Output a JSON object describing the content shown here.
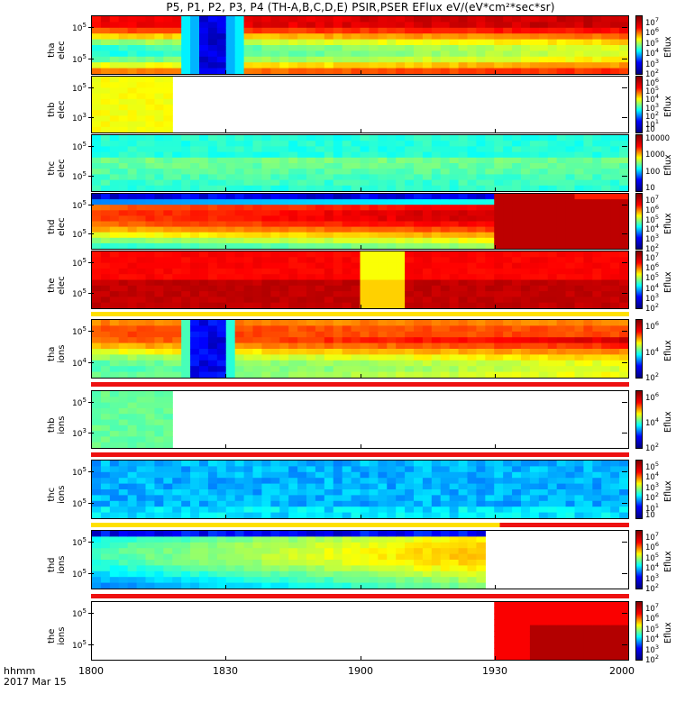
{
  "chart_data": {
    "type": "heatmap",
    "title": "P5, P1, P2, P3, P4 (TH-A,B,C,D,E) PSIR,PSER EFlux eV/(eV*cm²*sec*sr)",
    "x_ticks": [
      "1800",
      "1830",
      "1900",
      "1930",
      "2000"
    ],
    "x_foot": [
      "hhmm",
      "2017 Mar 15"
    ],
    "colorbar_label": "Eflux",
    "panels": [
      {
        "ylabel": [
          "tha",
          "elec"
        ],
        "yticks": [
          "10",
          "10"
        ],
        "ytick_exp": [
          "5",
          "5"
        ],
        "cbar_ticks": [
          "10",
          "10",
          "10",
          "10",
          "10",
          "10"
        ],
        "cbar_exp": [
          "7",
          "6",
          "5",
          "4",
          "3",
          "2"
        ]
      },
      {
        "ylabel": [
          "thb",
          "elec"
        ],
        "yticks": [
          "10",
          "10"
        ],
        "ytick_exp": [
          "5",
          "3"
        ],
        "cbar_ticks": [
          "10",
          "10",
          "10",
          "10",
          "10",
          "10",
          "10"
        ],
        "cbar_exp": [
          "6",
          "5",
          "4",
          "3",
          "2",
          "1",
          ""
        ]
      },
      {
        "ylabel": [
          "thc",
          "elec"
        ],
        "yticks": [
          "10",
          "10"
        ],
        "ytick_exp": [
          "5",
          "5"
        ],
        "cbar_ticks": [
          "10000",
          "1000",
          "100",
          "10"
        ],
        "cbar_exp": [
          "",
          "",
          "",
          ""
        ]
      },
      {
        "ylabel": [
          "thd",
          "elec"
        ],
        "yticks": [
          "10",
          "10"
        ],
        "ytick_exp": [
          "5",
          "5"
        ],
        "cbar_ticks": [
          "10",
          "10",
          "10",
          "10",
          "10",
          "10"
        ],
        "cbar_exp": [
          "7",
          "6",
          "5",
          "4",
          "3",
          "2"
        ]
      },
      {
        "ylabel": [
          "the",
          "elec"
        ],
        "yticks": [
          "10",
          "10"
        ],
        "ytick_exp": [
          "5",
          "5"
        ],
        "cbar_ticks": [
          "10",
          "10",
          "10",
          "10",
          "10",
          "10"
        ],
        "cbar_exp": [
          "7",
          "6",
          "5",
          "4",
          "3",
          "2"
        ]
      },
      {
        "ylabel": [
          "tha",
          "ions"
        ],
        "yticks": [
          "10",
          "10"
        ],
        "ytick_exp": [
          "5",
          "4"
        ],
        "cbar_ticks": [
          "10",
          "10",
          "10"
        ],
        "cbar_exp": [
          "6",
          "4",
          "2"
        ]
      },
      {
        "ylabel": [
          "thb",
          "ions"
        ],
        "yticks": [
          "10",
          "10"
        ],
        "ytick_exp": [
          "5",
          "3"
        ],
        "cbar_ticks": [
          "10",
          "10",
          "10"
        ],
        "cbar_exp": [
          "6",
          "4",
          "2"
        ]
      },
      {
        "ylabel": [
          "thc",
          "ions"
        ],
        "yticks": [
          "10",
          "10"
        ],
        "ytick_exp": [
          "5",
          "5"
        ],
        "cbar_ticks": [
          "10",
          "10",
          "10",
          "10",
          "10",
          "10"
        ],
        "cbar_exp": [
          "5",
          "4",
          "3",
          "2",
          "1",
          ""
        ]
      },
      {
        "ylabel": [
          "thd",
          "ions"
        ],
        "yticks": [
          "10",
          "10"
        ],
        "ytick_exp": [
          "5",
          "5"
        ],
        "cbar_ticks": [
          "10",
          "10",
          "10",
          "10",
          "10",
          "10"
        ],
        "cbar_exp": [
          "7",
          "6",
          "5",
          "4",
          "3",
          "2"
        ]
      },
      {
        "ylabel": [
          "the",
          "ions"
        ],
        "yticks": [
          "10",
          "10"
        ],
        "ytick_exp": [
          "5",
          "5"
        ],
        "cbar_ticks": [
          "10",
          "10",
          "10",
          "10",
          "10",
          "10"
        ],
        "cbar_exp": [
          "7",
          "6",
          "5",
          "4",
          "3",
          "2"
        ]
      }
    ]
  }
}
